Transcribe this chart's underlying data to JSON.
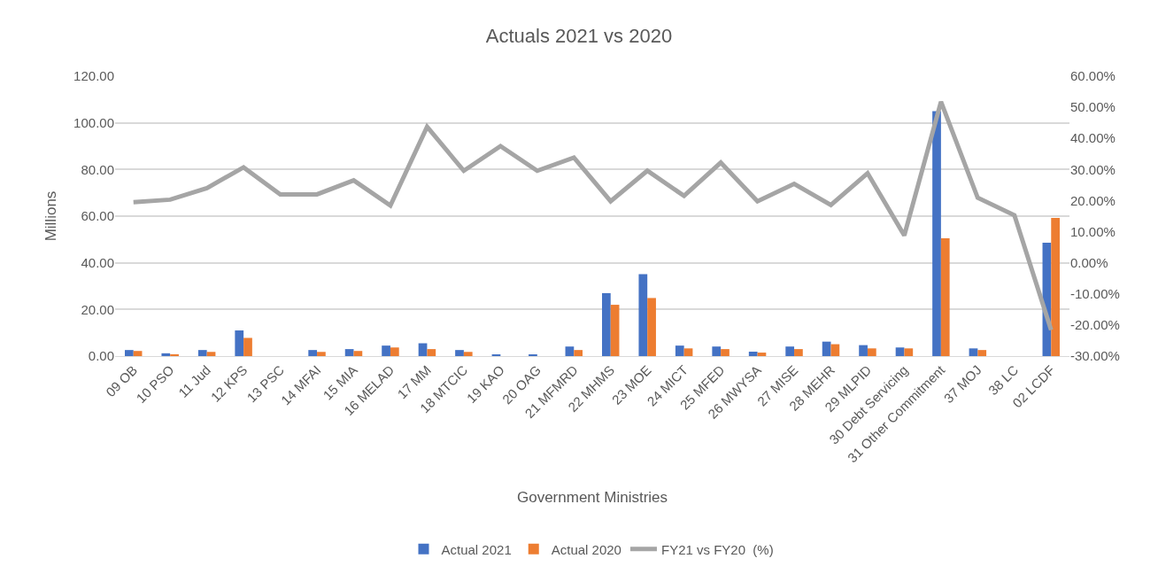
{
  "chart_data": {
    "type": "bar",
    "title": "Actuals 2021 vs 2020",
    "xlabel": "Government Ministries",
    "ylabel": "Millions",
    "categories": [
      "09 OB",
      "10 PSO",
      "11 Jud",
      "12 KPS",
      "13 PSC",
      "14 MFAI",
      "15 MIA",
      "16 MELAD",
      "17 MM",
      "18 MTCIC",
      "19 KAO",
      "20 OAG",
      "21 MFMRD",
      "22 MHMS",
      "23 MOE",
      "24 MICT",
      "25 MFED",
      "26 MWYSA",
      "27 MISE",
      "28 MEHR",
      "29 MLPID",
      "30 Debt Servicing",
      "31 Other Commitment",
      "37 MOJ",
      "38 LC",
      "02 LCDF"
    ],
    "series": [
      {
        "name": "Actual 2021",
        "color": "#4472c4",
        "values": [
          2.6,
          1.2,
          2.6,
          11,
          0,
          2.6,
          3.0,
          4.5,
          5.5,
          2.6,
          0.6,
          0.6,
          4.1,
          27,
          35.1,
          4.5,
          4.1,
          1.9,
          4.1,
          6.2,
          4.7,
          3.7,
          105,
          3.3,
          0,
          48.6
        ]
      },
      {
        "name": "Actual 2020",
        "color": "#ed7d31",
        "values": [
          2.2,
          0.8,
          1.8,
          7.8,
          0,
          1.8,
          2.2,
          3.7,
          3.0,
          1.8,
          0,
          0,
          2.6,
          22,
          24.9,
          3.3,
          3.0,
          1.5,
          3.0,
          5.1,
          3.3,
          3.3,
          50.5,
          2.6,
          0,
          59.2
        ]
      },
      {
        "name": "FY21 vs FY20  (%)",
        "type": "line",
        "axis": "y2",
        "color": "#a5a5a5",
        "values": [
          19.5,
          20.3,
          24,
          30.7,
          22,
          22,
          26.5,
          18.4,
          43.7,
          29.6,
          37.5,
          29.6,
          33.8,
          19.8,
          29.6,
          21.5,
          32.2,
          19.8,
          25.4,
          18.6,
          28.8,
          8.8,
          51.8,
          20.9,
          15.3,
          -21.6
        ]
      }
    ],
    "ylim": [
      0,
      120
    ],
    "yticks": [
      {
        "value": 0,
        "label": "0.00"
      },
      {
        "value": 20,
        "label": "20.00"
      },
      {
        "value": 40,
        "label": "40.00"
      },
      {
        "value": 60,
        "label": "60.00"
      },
      {
        "value": 80,
        "label": "80.00"
      },
      {
        "value": 100,
        "label": "100.00"
      },
      {
        "value": 120,
        "label": "120.00"
      }
    ],
    "y2lim": [
      -30,
      60
    ],
    "y2ticks": [
      {
        "value": -30,
        "label": "-30.00%"
      },
      {
        "value": -20,
        "label": "-20.00%"
      },
      {
        "value": -10,
        "label": "-10.00%"
      },
      {
        "value": 0,
        "label": "0.00%"
      },
      {
        "value": 10,
        "label": "10.00%"
      },
      {
        "value": 20,
        "label": "20.00%"
      },
      {
        "value": 30,
        "label": "30.00%"
      },
      {
        "value": 40,
        "label": "40.00%"
      },
      {
        "value": 50,
        "label": "50.00%"
      },
      {
        "value": 60,
        "label": "60.00%"
      }
    ],
    "grid": "y",
    "legend": "bottom",
    "marker": "none"
  }
}
